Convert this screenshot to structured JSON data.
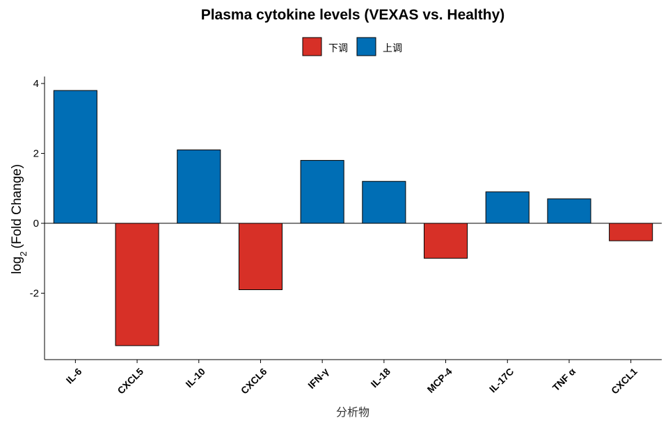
{
  "chart_data": {
    "type": "bar",
    "title": "Plasma cytokine levels (VEXAS vs. Healthy)",
    "xlabel": "分析物",
    "ylabel_main": "log",
    "ylabel_sub": "2",
    "ylabel_rest": "(Fold Change)",
    "ylim": [
      -3.9,
      4.2
    ],
    "yticks": [
      -2,
      0,
      2,
      4
    ],
    "categories": [
      "IL-6",
      "CXCL5",
      "IL-10",
      "CXCL6",
      "IFN-γ",
      "IL-18",
      "MCP-4",
      "IL-17C",
      "TNF α",
      "CXCL1"
    ],
    "values": [
      3.8,
      -3.5,
      2.1,
      -1.9,
      1.8,
      1.2,
      -1.0,
      0.9,
      0.7,
      -0.5
    ],
    "legend": {
      "placement": "top-center",
      "entries": [
        {
          "label": "下调",
          "color": "#d73027"
        },
        {
          "label": "上调",
          "color": "#006eb5"
        }
      ]
    },
    "colors": {
      "down": "#d73027",
      "up": "#006eb5"
    },
    "grid": false
  }
}
